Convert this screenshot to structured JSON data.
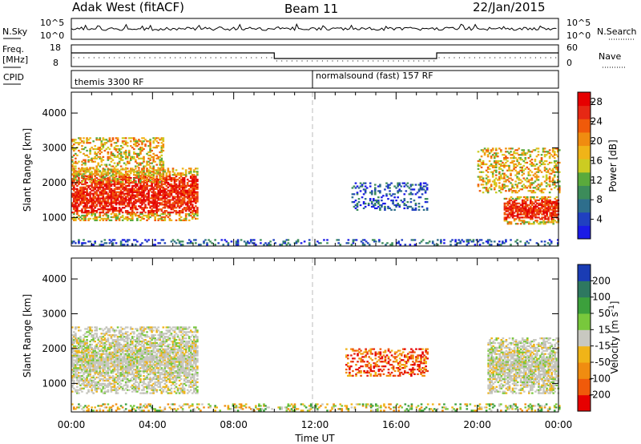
{
  "header": {
    "station": "Adak West (fitACF)",
    "beam": "Beam 11",
    "date": "22/Jan/2015"
  },
  "top_panels": {
    "nsky_label": "N.Sky",
    "nsky_ticks": [
      "10^5",
      "10^0"
    ],
    "nsearch_ticks": [
      "10^5",
      "10^0"
    ],
    "nsearch_label": "N.Search",
    "freq_label_1": "Freq.",
    "freq_label_2": "[MHz]",
    "freq_ticks": [
      "18",
      "8"
    ],
    "nave_ticks": [
      "60",
      "0"
    ],
    "nave_label": "Nave",
    "cpid_label": "CPID",
    "cpid_segments": [
      {
        "label": "themis 3300 RF",
        "start_hour": 0.0
      },
      {
        "label": "normalsound (fast) 157 RF",
        "start_hour": 12.0
      }
    ],
    "freq_profile": [
      {
        "from": 0.0,
        "to": 10.0,
        "level": "high"
      },
      {
        "from": 10.0,
        "to": 18.0,
        "level": "low"
      },
      {
        "from": 18.0,
        "to": 24.0,
        "level": "high"
      }
    ]
  },
  "chart_data": [
    {
      "type": "heatmap",
      "title": "Power",
      "ylabel": "Slant Range [km]",
      "xlabel": "Time UT",
      "x_ticks": [
        "00:00",
        "04:00",
        "08:00",
        "12:00",
        "16:00",
        "20:00",
        "00:00"
      ],
      "xlim_hours": [
        0,
        24
      ],
      "y_ticks": [
        1000,
        2000,
        3000,
        4000
      ],
      "ylim": [
        180,
        4600
      ],
      "colorbar": {
        "label": "Power [dB]",
        "ticks": [
          4,
          8,
          12,
          16,
          20,
          24,
          28
        ],
        "range": [
          0,
          30
        ],
        "colors": [
          "#1a1ae6",
          "#2040c0",
          "#2e6e8c",
          "#3c8c5a",
          "#5aaa3c",
          "#cccc22",
          "#f0b418",
          "#f08c10",
          "#f05a0a",
          "#e62814",
          "#e60000"
        ]
      },
      "features": [
        {
          "name": "strong echo band",
          "t": [
            0.0,
            6.2
          ],
          "range_km": [
            900,
            2400
          ],
          "level": "strong"
        },
        {
          "name": "upper scatter",
          "t": [
            0.0,
            4.5
          ],
          "range_km": [
            2000,
            3300
          ],
          "level": "medium"
        },
        {
          "name": "ground scatter",
          "t": [
            0.0,
            24.0
          ],
          "range_km": [
            200,
            350
          ],
          "level": "weak"
        },
        {
          "name": "evening band",
          "t": [
            13.8,
            17.5
          ],
          "range_km": [
            1200,
            2000
          ],
          "level": "weak"
        },
        {
          "name": "late strong band",
          "t": [
            21.3,
            24.0
          ],
          "range_km": [
            800,
            1600
          ],
          "level": "strong"
        },
        {
          "name": "late upper scatter",
          "t": [
            20.0,
            24.0
          ],
          "range_km": [
            1700,
            3000
          ],
          "level": "medium"
        }
      ]
    },
    {
      "type": "heatmap",
      "title": "Velocity",
      "ylabel": "Slant Range [km]",
      "xlabel": "Time UT",
      "x_ticks": [
        "00:00",
        "04:00",
        "08:00",
        "12:00",
        "16:00",
        "20:00",
        "00:00"
      ],
      "xlim_hours": [
        0,
        24
      ],
      "y_ticks": [
        1000,
        2000,
        3000,
        4000
      ],
      "ylim": [
        180,
        4600
      ],
      "colorbar": {
        "label": "Velocity [m s^-1]",
        "ticks": [
          200,
          100,
          50,
          15,
          -15,
          -50,
          -100,
          -200
        ],
        "colors": [
          "#1a3cb4",
          "#2e7860",
          "#3ca03c",
          "#78c83c",
          "#c8c8c0",
          "#f0b418",
          "#f08c10",
          "#f05a0a",
          "#e60000"
        ]
      },
      "features": [
        {
          "name": "ground-scatter grey band",
          "t": [
            0.0,
            6.2
          ],
          "range_km": [
            700,
            2600
          ],
          "color": "grey"
        },
        {
          "name": "negative velocity evening band",
          "t": [
            13.5,
            17.5
          ],
          "range_km": [
            1200,
            2000
          ],
          "color": "red-orange"
        },
        {
          "name": "late grey band",
          "t": [
            20.5,
            24.0
          ],
          "range_km": [
            700,
            2300
          ],
          "color": "grey"
        },
        {
          "name": "near-range band",
          "t": [
            0.0,
            24.0
          ],
          "range_km": [
            200,
            400
          ],
          "color": "orange-green"
        }
      ]
    }
  ]
}
